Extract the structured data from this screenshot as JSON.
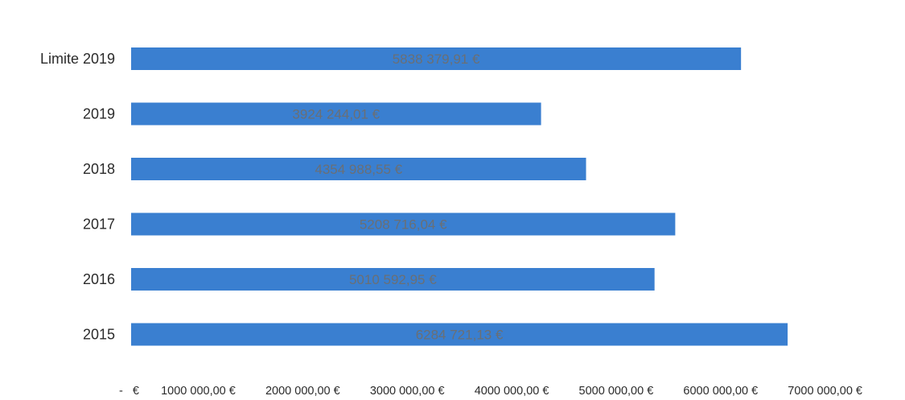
{
  "chart_data": {
    "type": "bar",
    "orientation": "horizontal",
    "title": "",
    "xlabel": "",
    "ylabel": "",
    "categories": [
      "Limite 2019",
      "2019",
      "2018",
      "2017",
      "2016",
      "2015"
    ],
    "values": [
      5838379.91,
      3924244.01,
      4354988.55,
      5208716.04,
      5010592.95,
      6284721.13
    ],
    "data_labels": [
      "5838 379,91 €",
      "3924 244,01 €",
      "4354 988,55 €",
      "5208 716,04 €",
      "5010 592,95 €",
      "6284 721,13 €"
    ],
    "xlim": [
      0,
      7000000
    ],
    "x_ticks": [
      0,
      1000000,
      2000000,
      3000000,
      4000000,
      5000000,
      6000000,
      7000000
    ],
    "x_tick_labels": [
      "-   €",
      "1000 000,00 €",
      "2000 000,00 €",
      "3000 000,00 €",
      "4000 000,00 €",
      "5000 000,00 €",
      "6000 000,00 €",
      "7000 000,00 €"
    ],
    "grid": false,
    "legend": "none",
    "colors": {
      "bar": "#3a7fd0",
      "data_label": "#6a6f75",
      "text": "#2b2b2b"
    }
  }
}
